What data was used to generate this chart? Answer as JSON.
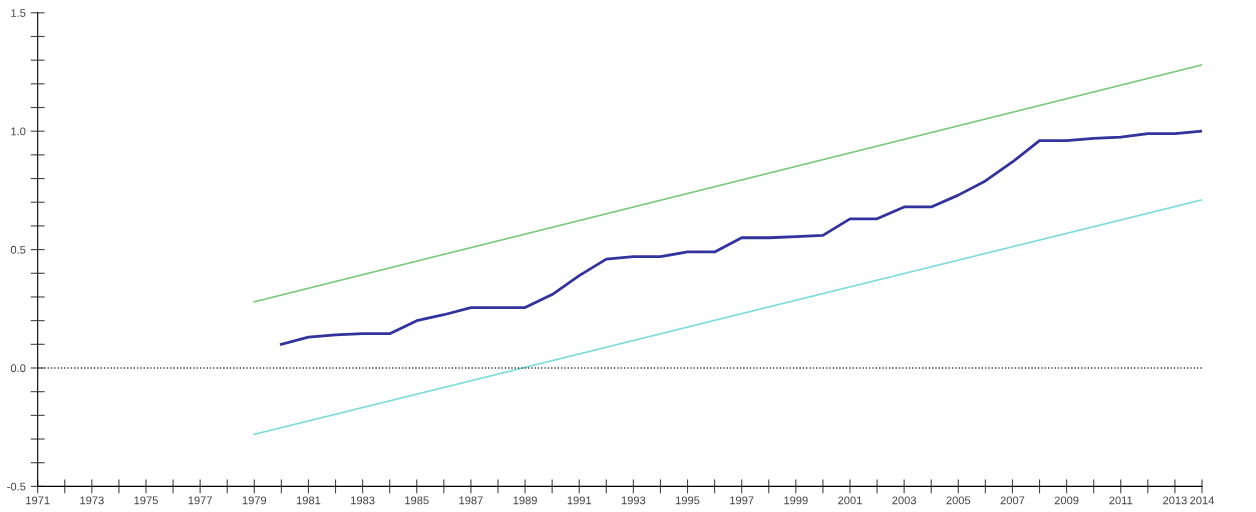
{
  "chart_data": {
    "type": "line",
    "xlim": [
      1971,
      2014
    ],
    "ylim": [
      -0.5,
      1.5
    ],
    "xticks": [
      1971,
      {
        "value": 1972,
        "label": null
      },
      1973,
      {
        "value": 1974,
        "label": null
      },
      1975,
      {
        "value": 1976,
        "label": null
      },
      1977,
      {
        "value": 1978,
        "label": null
      },
      1979,
      {
        "value": 1980,
        "label": null
      },
      1981,
      {
        "value": 1982,
        "label": null
      },
      1983,
      {
        "value": 1984,
        "label": null
      },
      1985,
      {
        "value": 1986,
        "label": null
      },
      1987,
      {
        "value": 1988,
        "label": null
      },
      1989,
      {
        "value": 1990,
        "label": null
      },
      1991,
      {
        "value": 1992,
        "label": null
      },
      1993,
      {
        "value": 1994,
        "label": null
      },
      1995,
      {
        "value": 1996,
        "label": null
      },
      1997,
      {
        "value": 1998,
        "label": null
      },
      1999,
      {
        "value": 2000,
        "label": null
      },
      2001,
      {
        "value": 2002,
        "label": null
      },
      2003,
      {
        "value": 2004,
        "label": null
      },
      2005,
      {
        "value": 2006,
        "label": null
      },
      2007,
      {
        "value": 2008,
        "label": null
      },
      2009,
      {
        "value": 2010,
        "label": null
      },
      2011,
      {
        "value": 2012,
        "label": null
      },
      2013,
      2014
    ],
    "yticks": [
      {
        "value": -0.5,
        "label": "-0.5"
      },
      {
        "value": -0.4,
        "label": null
      },
      {
        "value": -0.3,
        "label": null
      },
      {
        "value": -0.2,
        "label": null
      },
      {
        "value": -0.1,
        "label": null
      },
      {
        "value": 0.0,
        "label": "0.0"
      },
      {
        "value": 0.1,
        "label": null
      },
      {
        "value": 0.2,
        "label": null
      },
      {
        "value": 0.3,
        "label": null
      },
      {
        "value": 0.4,
        "label": null
      },
      {
        "value": 0.5,
        "label": "0.5"
      },
      {
        "value": 0.6,
        "label": null
      },
      {
        "value": 0.7,
        "label": null
      },
      {
        "value": 0.8,
        "label": null
      },
      {
        "value": 0.9,
        "label": null
      },
      {
        "value": 1.0,
        "label": "1.0"
      },
      {
        "value": 1.1,
        "label": null
      },
      {
        "value": 1.2,
        "label": null
      },
      {
        "value": 1.3,
        "label": null
      },
      {
        "value": 1.4,
        "label": null
      },
      {
        "value": 1.5,
        "label": "1.5"
      }
    ],
    "grid": false,
    "legend": false,
    "marker": "none",
    "line_style": "solid",
    "ref_lines": [
      {
        "axis": "y",
        "value": 0,
        "color": "#333333",
        "line_style": "dotted"
      }
    ],
    "series": [
      {
        "color": "#7fc97f",
        "x": [
          1979,
          2014
        ],
        "values": [
          0.28,
          1.28
        ]
      },
      {
        "color": "#33339f",
        "x": [
          1980,
          1981,
          1982,
          1983,
          1984,
          1985,
          1986,
          1987,
          1988,
          1989,
          1990,
          1991,
          1992,
          1993,
          1994,
          1995,
          1996,
          1997,
          1998,
          1999,
          2000,
          2001,
          2002,
          2003,
          2004,
          2005,
          2006,
          2007,
          2008,
          2009,
          2010,
          2011,
          2012,
          2013,
          2014
        ],
        "values": [
          0.1,
          0.13,
          0.14,
          0.145,
          0.145,
          0.2,
          0.225,
          0.255,
          0.255,
          0.255,
          0.31,
          0.39,
          0.46,
          0.47,
          0.47,
          0.49,
          0.49,
          0.55,
          0.55,
          0.555,
          0.56,
          0.63,
          0.63,
          0.68,
          0.68,
          0.73,
          0.79,
          0.87,
          0.96,
          0.96,
          0.97,
          0.975,
          0.99,
          0.99,
          1.0
        ]
      },
      {
        "color": "#7fdcdc",
        "x": [
          1979,
          2014
        ],
        "values": [
          -0.28,
          0.71
        ]
      }
    ]
  }
}
